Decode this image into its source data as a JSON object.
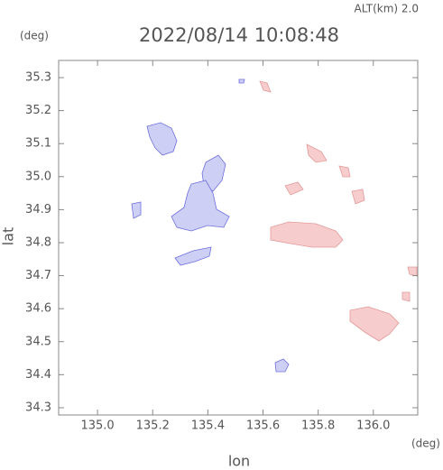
{
  "chart_data": {
    "type": "map",
    "title": "2022/08/14 10:08:48",
    "altitude": "ALT(km)  2.0",
    "xlabel": "lon",
    "ylabel": "lat",
    "x_unit": "(deg)",
    "y_unit": "(deg)",
    "xlim": [
      134.859,
      136.161
    ],
    "ylim": [
      34.278,
      35.352
    ],
    "xticks": [
      {
        "value": 135,
        "label": "135.0"
      },
      135.2,
      135.4,
      135.6,
      135.8,
      {
        "value": 136,
        "label": "136.0"
      }
    ],
    "yticks": [
      34.3,
      34.4,
      34.5,
      34.6,
      34.7,
      34.8,
      34.9,
      {
        "value": 35,
        "label": "35.0"
      },
      35.1,
      35.2,
      35.3
    ]
  }
}
